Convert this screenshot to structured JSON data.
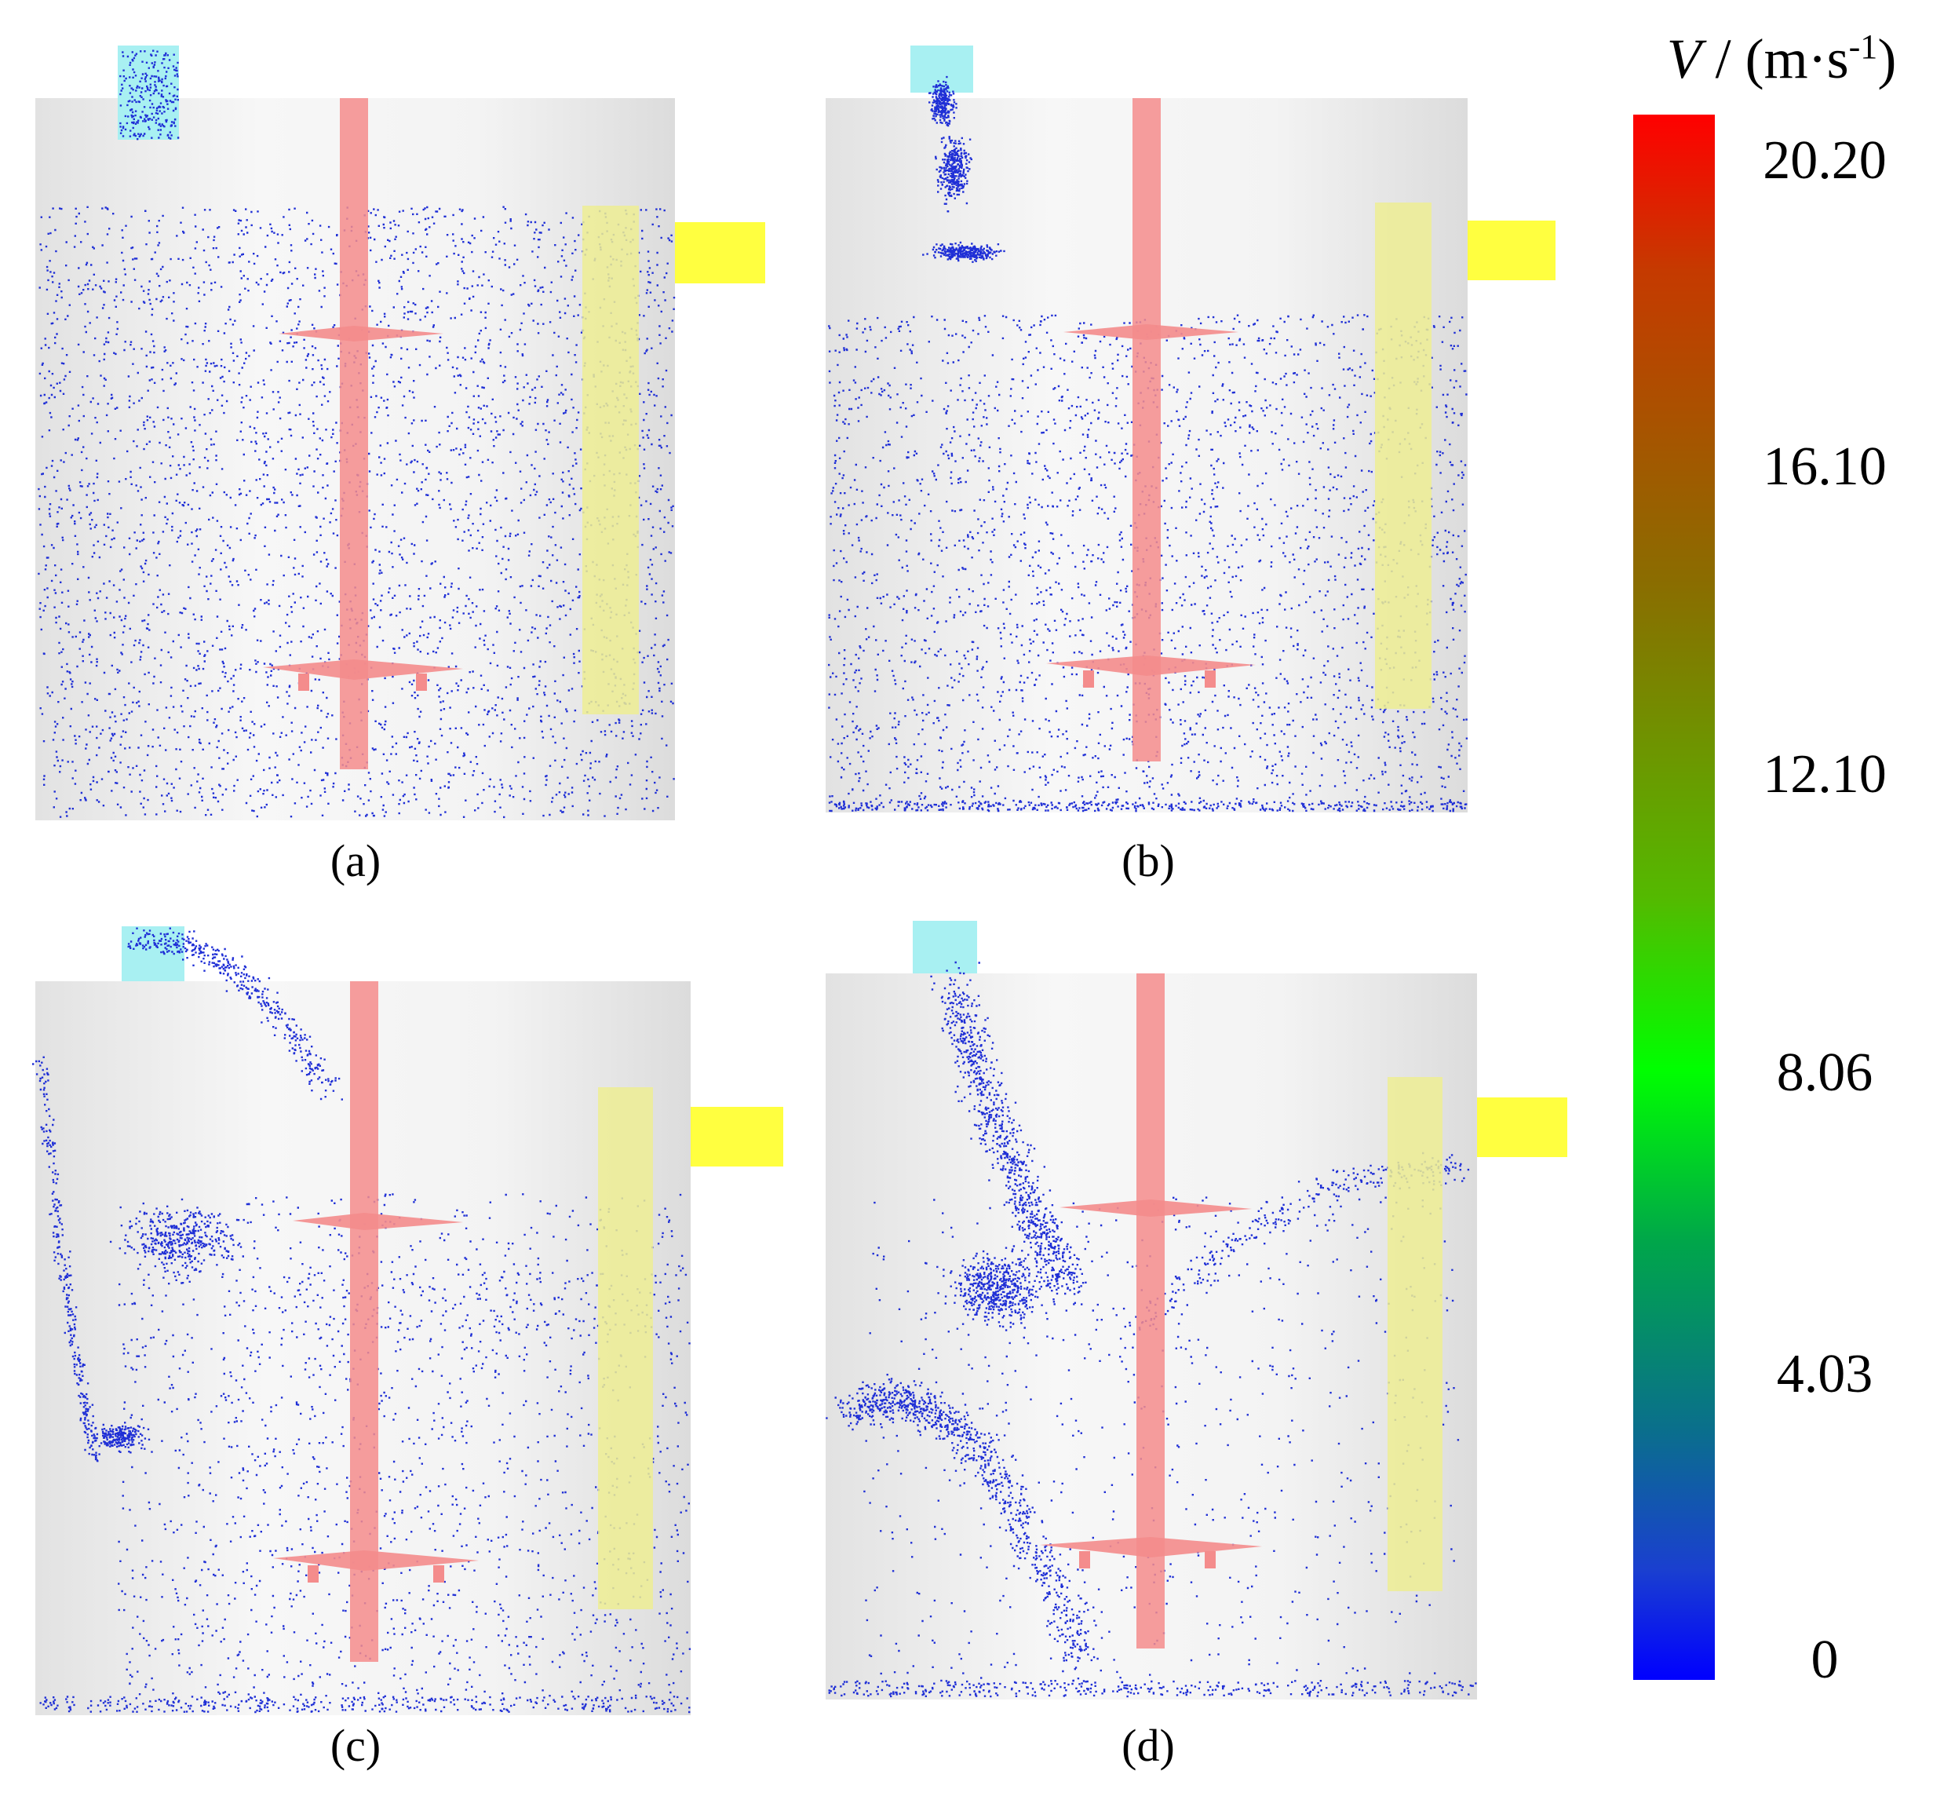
{
  "figure": {
    "panels": [
      {
        "id": "a",
        "label": "(a)"
      },
      {
        "id": "b",
        "label": "(b)"
      },
      {
        "id": "c",
        "label": "(c)"
      },
      {
        "id": "d",
        "label": "(d)"
      }
    ],
    "colorbar": {
      "symbol": "V",
      "unit_prefix": " / (m·s",
      "unit_exponent": "-1",
      "unit_suffix": ")",
      "ticks": [
        "20.20",
        "16.10",
        "12.10",
        "8.06",
        "4.03",
        "0"
      ],
      "min": 0,
      "max": 20.2,
      "colors": {
        "top": "#ff0000",
        "middle": "#00ff00",
        "bottom": "#0000ff"
      }
    }
  },
  "colors": {
    "particle": "#1f2fd6",
    "shaft": "#f48c8c",
    "baffle": "#eded93",
    "outlet": "#ffff40",
    "inlet": "#a8f0f2",
    "vessel": "#ececec"
  }
}
